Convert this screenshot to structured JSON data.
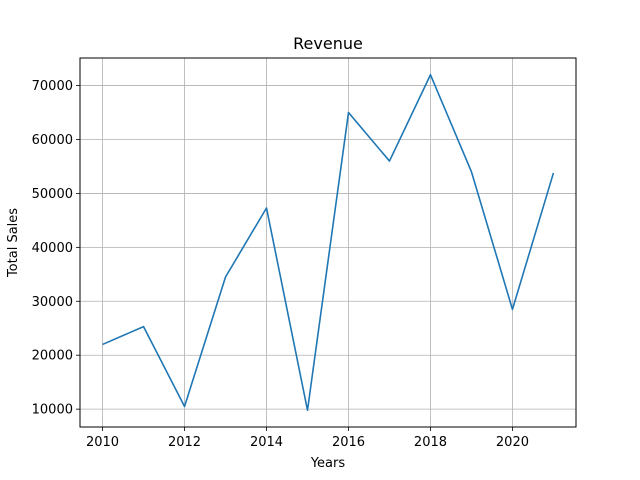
{
  "chart_data": {
    "type": "line",
    "title": "Revenue",
    "xlabel": "Years",
    "ylabel": "Total Sales",
    "x": [
      2010,
      2011,
      2012,
      2013,
      2014,
      2015,
      2016,
      2017,
      2018,
      2019,
      2020,
      2021
    ],
    "series": [
      {
        "values": [
          22000,
          25300,
          10500,
          34500,
          47300,
          9800,
          65000,
          56000,
          72000,
          54000,
          28500,
          53800
        ],
        "color": "#1f77b4"
      }
    ],
    "xlim": [
      2009.45,
      2021.55
    ],
    "ylim": [
      6690,
      75110
    ],
    "xticks": [
      2010,
      2012,
      2014,
      2016,
      2018,
      2020
    ],
    "yticks": [
      10000,
      20000,
      30000,
      40000,
      50000,
      60000,
      70000
    ],
    "grid": true,
    "grid_color": "#b0b0b0",
    "legend": false
  }
}
